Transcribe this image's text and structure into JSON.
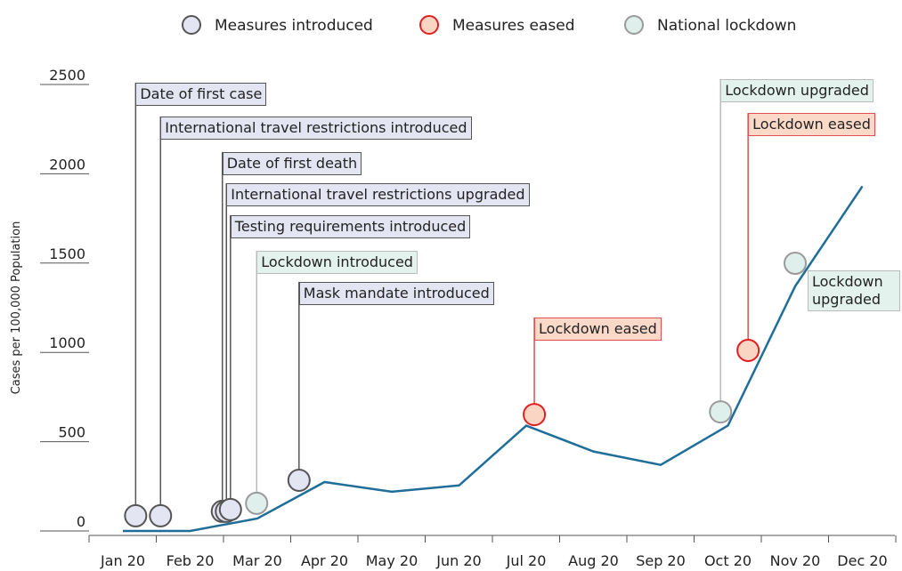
{
  "chart_data": {
    "type": "line",
    "y_label": "Cases per 100,000 Population",
    "categories": [
      "Jan 20",
      "Feb 20",
      "Mar 20",
      "Apr 20",
      "May 20",
      "Jun 20",
      "Jul 20",
      "Aug 20",
      "Sep 20",
      "Oct 20",
      "Nov 20",
      "Dec 20"
    ],
    "values": [
      0,
      0,
      70,
      274,
      220,
      255,
      590,
      445,
      370,
      590,
      1370,
      1930
    ],
    "color": "#1f6e9a",
    "ylim": [
      0,
      2500
    ],
    "yticks": [
      0,
      500,
      1000,
      1500,
      2000,
      2500
    ],
    "legend": [
      {
        "name": "Measures introduced",
        "fill": "#e3e5f3",
        "stroke": "#555555"
      },
      {
        "name": "Measures eased",
        "fill": "#fbd5c4",
        "stroke": "#e02020"
      },
      {
        "name": "National lockdown",
        "fill": "#dff0ec",
        "stroke": "#9a9a9a"
      }
    ],
    "events": [
      {
        "label": "Date of first case",
        "x": 0.19,
        "y": 85,
        "kind": 0
      },
      {
        "label": "International travel restrictions introduced",
        "x": 0.56,
        "y": 85,
        "kind": 0
      },
      {
        "label": "Date of first death",
        "x": 1.48,
        "y": 110,
        "kind": 0
      },
      {
        "label": "International travel restrictions upgraded",
        "x": 1.54,
        "y": 110,
        "kind": 0
      },
      {
        "label": "Testing requirements introduced",
        "x": 1.6,
        "y": 120,
        "kind": 0
      },
      {
        "label": "Lockdown introduced",
        "x": 1.99,
        "y": 155,
        "kind": 2
      },
      {
        "label": "Mask mandate introduced",
        "x": 2.62,
        "y": 284,
        "kind": 0
      },
      {
        "label": "Lockdown eased",
        "x": 6.12,
        "y": 652,
        "kind": 1
      },
      {
        "label": "Lockdown upgraded",
        "x": 8.89,
        "y": 667,
        "kind": 2
      },
      {
        "label": "Lockdown eased",
        "x": 9.3,
        "y": 1011,
        "kind": 1
      },
      {
        "label": "Lockdown upgraded",
        "x": 10.0,
        "y": 1499,
        "kind": 2
      }
    ]
  }
}
